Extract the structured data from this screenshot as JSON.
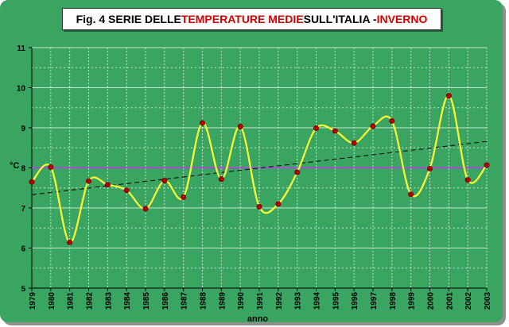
{
  "title": {
    "parts": [
      {
        "text": "Fig. 4  SERIE DELLE ",
        "color": "#000000"
      },
      {
        "text": "TEMPERATURE MEDIE",
        "color": "#d40000"
      },
      {
        "text": " SULL'ITALIA - ",
        "color": "#000000"
      },
      {
        "text": "INVERNO",
        "color": "#d40000"
      }
    ]
  },
  "chart_data": {
    "type": "line",
    "title": "Fig. 4  SERIE DELLE TEMPERATURE MEDIE SULL'ITALIA - INVERNO",
    "xlabel": "anno",
    "ylabel": "°C",
    "ylim": [
      5,
      11
    ],
    "y_ticks": [
      "5",
      "6",
      "7",
      "8",
      "9",
      "10",
      "11"
    ],
    "grid": true,
    "categories": [
      "1979",
      "1980",
      "1981",
      "1982",
      "1983",
      "1984",
      "1985",
      "1986",
      "1987",
      "1988",
      "1989",
      "1990",
      "1991",
      "1992",
      "1993",
      "1994",
      "1995",
      "1996",
      "1997",
      "1998",
      "1999",
      "2000",
      "2001",
      "2002",
      "2003"
    ],
    "series": [
      {
        "values": [
          7.65,
          8.02,
          6.14,
          7.67,
          7.58,
          7.44,
          6.98,
          7.68,
          7.27,
          9.12,
          7.72,
          9.03,
          7.03,
          7.1,
          7.89,
          8.99,
          8.92,
          8.62,
          9.04,
          9.17,
          7.34,
          7.98,
          9.8,
          7.7,
          8.07
        ],
        "line_color": "#ffff33",
        "marker_color": "#b40000"
      }
    ],
    "mean_line": {
      "value": 8.0,
      "color": "#cc33ff"
    },
    "trend_line": {
      "start": 7.33,
      "end": 8.66,
      "color": "#000000"
    },
    "colors": {
      "background": "#3aa461",
      "grid": "#c7e6cc",
      "axis": "#000000"
    }
  }
}
